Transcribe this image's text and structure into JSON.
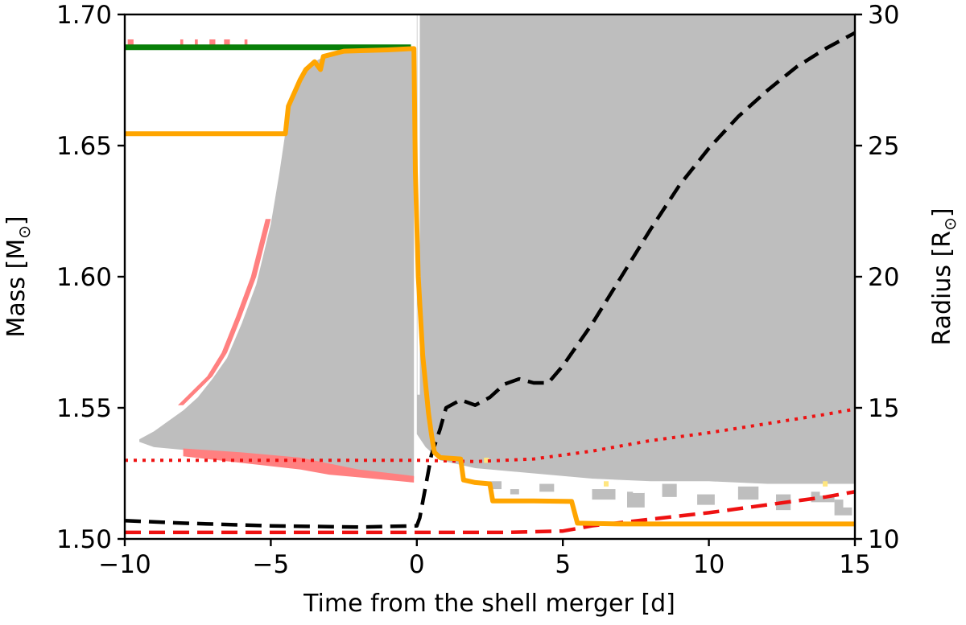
{
  "chart_data": {
    "type": "line",
    "xlabel": "Time from the shell merger [d]",
    "ylabel_left": "Mass [M",
    "ylabel_left_sub": "⊙",
    "ylabel_left_end": "]",
    "ylabel_right": "Radius [R",
    "ylabel_right_sub": "⊙",
    "ylabel_right_end": "]",
    "xlim": [
      -10,
      15
    ],
    "ylim_left": [
      1.5,
      1.7
    ],
    "ylim_right": [
      10,
      30
    ],
    "xticks": [
      -10,
      -5,
      0,
      5,
      10,
      15
    ],
    "xtick_labels": [
      "−10",
      "−5",
      "0",
      "5",
      "10",
      "15"
    ],
    "yticks_left": [
      1.5,
      1.55,
      1.6,
      1.65,
      1.7
    ],
    "ytick_labels_left": [
      "1.50",
      "1.55",
      "1.60",
      "1.65",
      "1.70"
    ],
    "yticks_right": [
      10,
      15,
      20,
      25,
      30
    ],
    "ytick_labels_right": [
      "10",
      "15",
      "20",
      "25",
      "30"
    ],
    "grid": false,
    "colors": {
      "convection": "#bebebe",
      "overshoot": "#ff8080",
      "orange": "#ffa500",
      "green": "#087f08",
      "black": "#000000",
      "red": "#ee1111",
      "semiconv": "#ffe680"
    },
    "regions": {
      "convective_left": {
        "upper": [
          [
            -9.5,
            1.538
          ],
          [
            -9,
            1.541
          ],
          [
            -8.5,
            1.545
          ],
          [
            -8,
            1.549
          ],
          [
            -7.5,
            1.554
          ],
          [
            -7,
            1.561
          ],
          [
            -6.5,
            1.569
          ],
          [
            -6,
            1.582
          ],
          [
            -5.5,
            1.597
          ],
          [
            -5,
            1.62
          ],
          [
            -4.7,
            1.64
          ],
          [
            -4.5,
            1.655
          ],
          [
            -4.3,
            1.668
          ],
          [
            -4,
            1.675
          ],
          [
            -3.5,
            1.682
          ],
          [
            -3,
            1.685
          ],
          [
            -2,
            1.686
          ],
          [
            -0.1,
            1.686
          ]
        ],
        "lower": [
          [
            -9.5,
            1.537
          ],
          [
            -9,
            1.535
          ],
          [
            -8,
            1.534
          ],
          [
            -7,
            1.533
          ],
          [
            -6,
            1.532
          ],
          [
            -5,
            1.531
          ],
          [
            -3,
            1.528
          ],
          [
            -2,
            1.526
          ],
          [
            -0.1,
            1.523
          ]
        ]
      },
      "convective_right": {
        "upper_y": 1.7,
        "lower": [
          [
            0,
            1.54
          ],
          [
            0.3,
            1.535
          ],
          [
            0.8,
            1.53
          ],
          [
            2,
            1.527
          ],
          [
            4,
            1.525
          ],
          [
            6,
            1.523
          ],
          [
            8,
            1.522
          ],
          [
            10,
            1.522
          ],
          [
            12,
            1.521
          ],
          [
            15,
            1.521
          ]
        ]
      },
      "overshoot_left_edge": [
        [
          -8,
          1.551
        ],
        [
          -7,
          1.562
        ],
        [
          -6.5,
          1.571
        ],
        [
          -6,
          1.585
        ],
        [
          -5.5,
          1.6
        ],
        [
          -5,
          1.622
        ]
      ],
      "overshoot_bottom_band": {
        "upper": [
          [
            -8,
            1.5345
          ],
          [
            -6,
            1.533
          ],
          [
            -4,
            1.531
          ],
          [
            -2,
            1.5265
          ],
          [
            -0.1,
            1.524
          ]
        ],
        "lower": [
          [
            -8,
            1.5315
          ],
          [
            -6,
            1.529
          ],
          [
            -4,
            1.5265
          ],
          [
            -3,
            1.5245
          ],
          [
            -2,
            1.5235
          ],
          [
            -0.1,
            1.5215
          ]
        ]
      },
      "overshoot_top_ticks": [
        [
          -9.9,
          -9.7
        ],
        [
          -8.1,
          -8
        ],
        [
          -7.6,
          -7.5
        ],
        [
          -7.1,
          -6.9
        ],
        [
          -6.6,
          -6.4
        ],
        [
          -5.9,
          -5.8
        ]
      ]
    },
    "series": [
      {
        "style": "solid",
        "color": "orange",
        "axis": "left",
        "points": [
          [
            -10,
            1.6545
          ],
          [
            -4.5,
            1.6545
          ],
          [
            -4.4,
            1.665
          ],
          [
            -4.0,
            1.675
          ],
          [
            -3.8,
            1.679
          ],
          [
            -3.5,
            1.682
          ],
          [
            -3.3,
            1.679
          ],
          [
            -3.2,
            1.684
          ],
          [
            -2.5,
            1.686
          ],
          [
            -1,
            1.6865
          ],
          [
            -0.1,
            1.687
          ],
          [
            -0.05,
            1.64
          ],
          [
            0.05,
            1.6
          ],
          [
            0.2,
            1.57
          ],
          [
            0.4,
            1.548
          ],
          [
            0.5,
            1.54
          ],
          [
            0.6,
            1.533
          ],
          [
            0.8,
            1.531
          ],
          [
            1.5,
            1.5305
          ],
          [
            1.6,
            1.5225
          ],
          [
            2.0,
            1.5215
          ],
          [
            2.5,
            1.521
          ],
          [
            2.6,
            1.5145
          ],
          [
            4,
            1.5145
          ],
          [
            5.3,
            1.5143
          ],
          [
            5.5,
            1.506
          ],
          [
            7,
            1.5057
          ],
          [
            10,
            1.5057
          ],
          [
            15,
            1.5057
          ]
        ]
      },
      {
        "style": "solid",
        "color": "green",
        "axis": "left",
        "points": [
          [
            -10,
            1.6875
          ],
          [
            -0.2,
            1.6875
          ]
        ]
      },
      {
        "style": "dashed",
        "color": "black",
        "axis": "right",
        "points": [
          [
            -10,
            10.7
          ],
          [
            -8,
            10.6
          ],
          [
            -5,
            10.5
          ],
          [
            -2,
            10.45
          ],
          [
            0,
            10.5
          ],
          [
            0.1,
            10.8
          ],
          [
            0.3,
            12
          ],
          [
            0.5,
            13.2
          ],
          [
            0.8,
            14.2
          ],
          [
            1,
            15
          ],
          [
            1.5,
            15.3
          ],
          [
            2,
            15.1
          ],
          [
            2.5,
            15.4
          ],
          [
            3,
            15.9
          ],
          [
            3.5,
            16.1
          ],
          [
            4,
            15.95
          ],
          [
            4.5,
            15.95
          ],
          [
            5,
            16.6
          ],
          [
            5.5,
            17.4
          ],
          [
            6,
            18.2
          ],
          [
            7,
            20
          ],
          [
            8,
            21.8
          ],
          [
            9,
            23.5
          ],
          [
            10,
            24.9
          ],
          [
            11,
            26.1
          ],
          [
            12,
            27.1
          ],
          [
            13,
            28
          ],
          [
            14,
            28.7
          ],
          [
            15,
            29.3
          ]
        ]
      },
      {
        "style": "dotted",
        "color": "red",
        "axis": "right",
        "points": [
          [
            -10,
            13
          ],
          [
            -5,
            13
          ],
          [
            0,
            13
          ],
          [
            2,
            12.95
          ],
          [
            4,
            13.05
          ],
          [
            6,
            13.35
          ],
          [
            8,
            13.75
          ],
          [
            10,
            14.05
          ],
          [
            12,
            14.4
          ],
          [
            14,
            14.75
          ],
          [
            15,
            14.95
          ]
        ]
      },
      {
        "style": "dashed",
        "color": "red",
        "axis": "right",
        "points": [
          [
            -10,
            10.25
          ],
          [
            -5,
            10.25
          ],
          [
            0,
            10.25
          ],
          [
            3,
            10.25
          ],
          [
            5,
            10.3
          ],
          [
            6,
            10.5
          ],
          [
            8,
            10.75
          ],
          [
            10,
            11
          ],
          [
            12,
            11.3
          ],
          [
            14,
            11.6
          ],
          [
            15,
            11.8
          ]
        ]
      }
    ]
  }
}
